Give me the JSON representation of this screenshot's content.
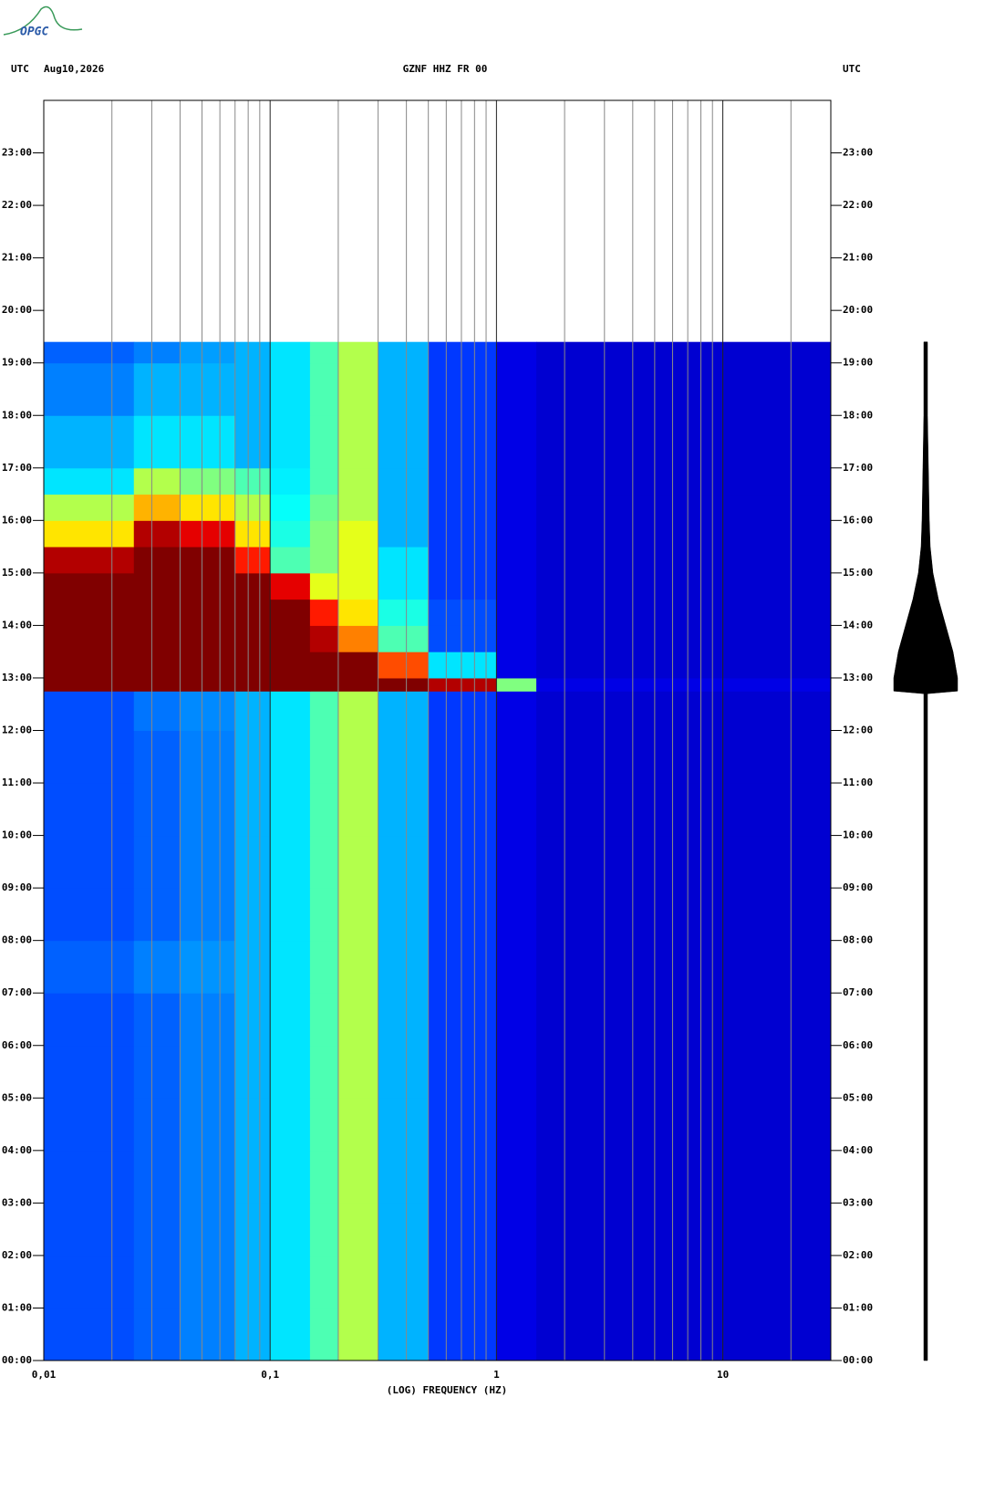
{
  "logo": "OPGC",
  "chart_data": {
    "type": "heatmap",
    "time_zone_left": "UTC",
    "date": "Aug10,2026",
    "title": "GZNF HHZ FR 00",
    "time_zone_right": "UTC",
    "x_label": "(LOG) FREQUENCY (HZ)",
    "x_log": true,
    "xlim": [
      0.01,
      30
    ],
    "xticks": [
      {
        "value": 0.01,
        "label": "0,01"
      },
      {
        "value": 0.1,
        "label": "0,1"
      },
      1,
      10
    ],
    "xminor_ticks": [
      0.02,
      0.03,
      0.04,
      0.05,
      0.06,
      0.07,
      0.08,
      0.09,
      0.2,
      0.3,
      0.4,
      0.5,
      0.6,
      0.7,
      0.8,
      0.9,
      2,
      3,
      4,
      5,
      6,
      7,
      8,
      9,
      20
    ],
    "ylim": [
      0,
      24
    ],
    "yticks": [
      {
        "value": 0,
        "label": "00:00"
      },
      {
        "value": 1,
        "label": "01:00"
      },
      {
        "value": 2,
        "label": "02:00"
      },
      {
        "value": 3,
        "label": "03:00"
      },
      {
        "value": 4,
        "label": "04:00"
      },
      {
        "value": 5,
        "label": "05:00"
      },
      {
        "value": 6,
        "label": "06:00"
      },
      {
        "value": 7,
        "label": "07:00"
      },
      {
        "value": 8,
        "label": "08:00"
      },
      {
        "value": 9,
        "label": "09:00"
      },
      {
        "value": 10,
        "label": "10:00"
      },
      {
        "value": 11,
        "label": "11:00"
      },
      {
        "value": 12,
        "label": "12:00"
      },
      {
        "value": 13,
        "label": "13:00"
      },
      {
        "value": 14,
        "label": "14:00"
      },
      {
        "value": 15,
        "label": "15:00"
      },
      {
        "value": 16,
        "label": "16:00"
      },
      {
        "value": 17,
        "label": "17:00"
      },
      {
        "value": 18,
        "label": "18:00"
      },
      {
        "value": 19,
        "label": "19:00"
      },
      {
        "value": 20,
        "label": "20:00"
      },
      {
        "value": 21,
        "label": "21:00"
      },
      {
        "value": 22,
        "label": "22:00"
      },
      {
        "value": 23,
        "label": "23:00"
      }
    ],
    "heatmap": {
      "x_edges": [
        0.01,
        0.025,
        0.04,
        0.07,
        0.1,
        0.15,
        0.2,
        0.3,
        0.5,
        1,
        1.5,
        30
      ],
      "y_edges": [
        0,
        1,
        2,
        3,
        4,
        5,
        6,
        7,
        8,
        9,
        10,
        11,
        12,
        12.75,
        13,
        13.5,
        14,
        14.5,
        15,
        15.5,
        16,
        16.5,
        17,
        18,
        19,
        19.4
      ],
      "values": [
        [
          0.2,
          0.22,
          0.25,
          0.3,
          0.35,
          0.45,
          0.55,
          0.3,
          0.18,
          0.1,
          0.08
        ],
        [
          0.2,
          0.22,
          0.25,
          0.3,
          0.35,
          0.45,
          0.55,
          0.3,
          0.18,
          0.1,
          0.08
        ],
        [
          0.2,
          0.22,
          0.25,
          0.3,
          0.35,
          0.45,
          0.55,
          0.3,
          0.18,
          0.1,
          0.08
        ],
        [
          0.2,
          0.22,
          0.25,
          0.3,
          0.35,
          0.45,
          0.55,
          0.3,
          0.18,
          0.1,
          0.08
        ],
        [
          0.2,
          0.22,
          0.25,
          0.3,
          0.35,
          0.45,
          0.55,
          0.3,
          0.18,
          0.1,
          0.08
        ],
        [
          0.2,
          0.22,
          0.25,
          0.3,
          0.35,
          0.45,
          0.55,
          0.3,
          0.18,
          0.1,
          0.08
        ],
        [
          0.2,
          0.22,
          0.25,
          0.3,
          0.35,
          0.45,
          0.55,
          0.3,
          0.18,
          0.1,
          0.08
        ],
        [
          0.22,
          0.25,
          0.27,
          0.3,
          0.35,
          0.45,
          0.55,
          0.3,
          0.18,
          0.1,
          0.08
        ],
        [
          0.2,
          0.22,
          0.25,
          0.3,
          0.35,
          0.45,
          0.55,
          0.3,
          0.18,
          0.1,
          0.08
        ],
        [
          0.2,
          0.22,
          0.25,
          0.3,
          0.35,
          0.45,
          0.55,
          0.3,
          0.18,
          0.1,
          0.08
        ],
        [
          0.2,
          0.22,
          0.25,
          0.3,
          0.35,
          0.45,
          0.55,
          0.3,
          0.18,
          0.1,
          0.08
        ],
        [
          0.2,
          0.22,
          0.25,
          0.3,
          0.35,
          0.45,
          0.55,
          0.3,
          0.18,
          0.1,
          0.08
        ],
        [
          0.2,
          0.24,
          0.26,
          0.3,
          0.35,
          0.45,
          0.55,
          0.3,
          0.18,
          0.1,
          0.08
        ],
        [
          1,
          1,
          1,
          1,
          1,
          1,
          1,
          1,
          0.95,
          0.5,
          0.1
        ],
        [
          1,
          1,
          1,
          1,
          1,
          1,
          1,
          0.8,
          0.35,
          0.1,
          0.08
        ],
        [
          1,
          1,
          1,
          1,
          1,
          0.95,
          0.75,
          0.45,
          0.2,
          0.1,
          0.08
        ],
        [
          1,
          1,
          1,
          1,
          1,
          0.85,
          0.65,
          0.4,
          0.2,
          0.1,
          0.08
        ],
        [
          1,
          1,
          1,
          1,
          0.9,
          0.6,
          0.6,
          0.35,
          0.18,
          0.1,
          0.08
        ],
        [
          0.95,
          1,
          1,
          0.85,
          0.45,
          0.5,
          0.6,
          0.35,
          0.18,
          0.1,
          0.08
        ],
        [
          0.65,
          0.95,
          0.9,
          0.65,
          0.4,
          0.5,
          0.6,
          0.3,
          0.18,
          0.1,
          0.08
        ],
        [
          0.55,
          0.7,
          0.65,
          0.55,
          0.38,
          0.48,
          0.55,
          0.3,
          0.18,
          0.1,
          0.08
        ],
        [
          0.35,
          0.55,
          0.5,
          0.45,
          0.36,
          0.45,
          0.55,
          0.3,
          0.18,
          0.1,
          0.08
        ],
        [
          0.3,
          0.35,
          0.35,
          0.3,
          0.35,
          0.45,
          0.55,
          0.3,
          0.18,
          0.1,
          0.08
        ],
        [
          0.25,
          0.3,
          0.3,
          0.3,
          0.35,
          0.45,
          0.55,
          0.3,
          0.18,
          0.1,
          0.08
        ],
        [
          0.22,
          0.25,
          0.28,
          0.3,
          0.35,
          0.45,
          0.55,
          0.3,
          0.18,
          0.1,
          0.08
        ]
      ]
    },
    "trace": {
      "hours": [
        0,
        12.7,
        12.75,
        13,
        13.5,
        14,
        14.5,
        15,
        15.5,
        16,
        17,
        18,
        19.4
      ],
      "amplitude": [
        2,
        2,
        35,
        35,
        30,
        22,
        14,
        8,
        5,
        4,
        3,
        2,
        2
      ]
    }
  }
}
